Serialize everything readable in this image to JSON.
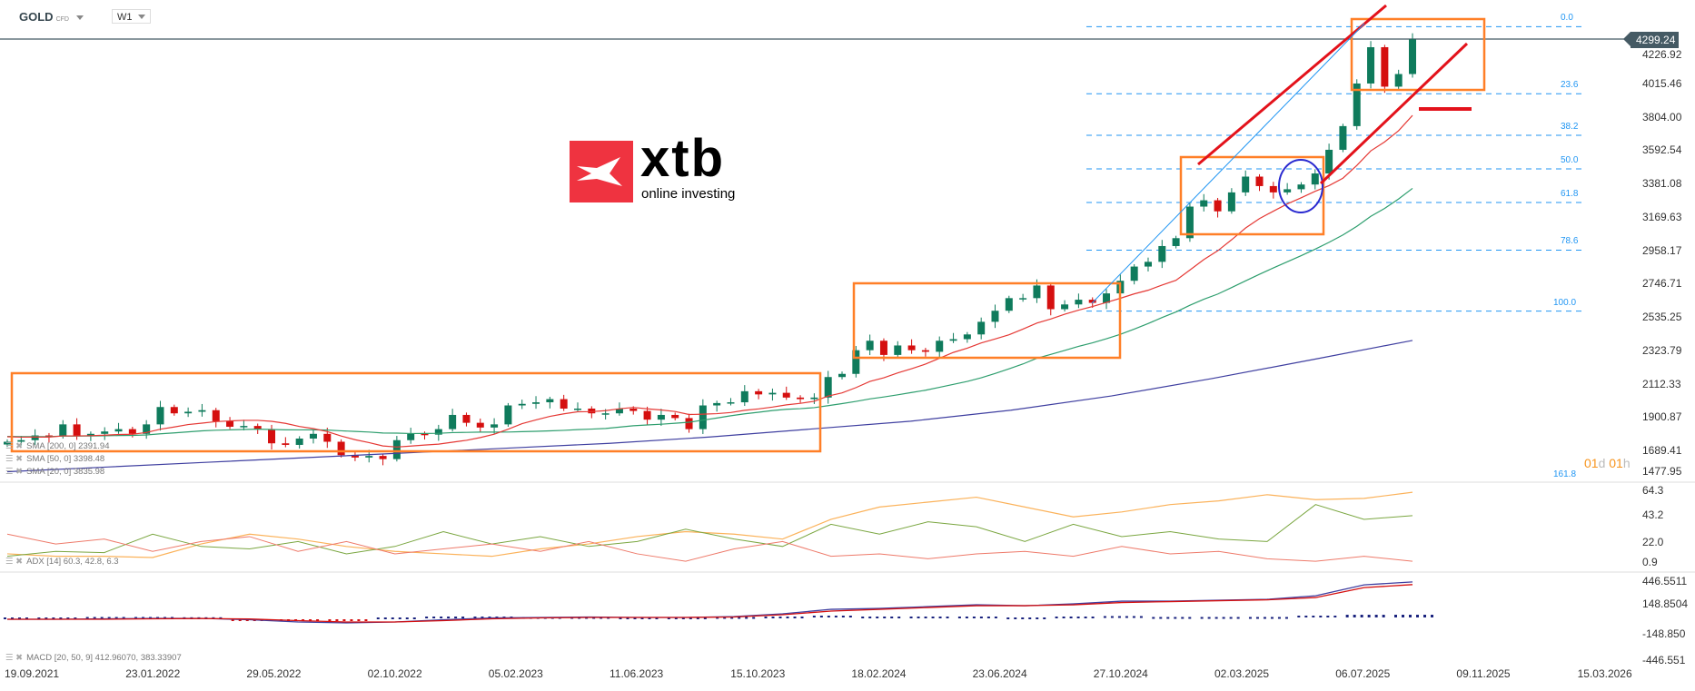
{
  "header": {
    "symbol": "GOLD",
    "instrument_type": "CFD",
    "timeframe": "W1"
  },
  "logo": {
    "brand": "xtb",
    "tagline": "online investing",
    "color": "#ef3340"
  },
  "current_price": "4299.24",
  "price_axis": [
    "4226.92",
    "4015.46",
    "3804.00",
    "3592.54",
    "3381.08",
    "3169.63",
    "2958.17",
    "2746.71",
    "2535.25",
    "2323.79",
    "2112.33",
    "1900.87",
    "1689.41",
    "1477.95"
  ],
  "adx_axis": [
    "64.3",
    "43.2",
    "22.0",
    "0.9"
  ],
  "macd_axis": [
    "446.5511",
    "148.8504",
    "-148.850",
    "-446.551"
  ],
  "dates": [
    "19.09.2021",
    "23.01.2022",
    "29.05.2022",
    "02.10.2022",
    "05.02.2023",
    "11.06.2023",
    "15.10.2023",
    "18.02.2024",
    "23.06.2024",
    "27.10.2024",
    "02.03.2025",
    "06.07.2025",
    "09.11.2025",
    "15.03.2026"
  ],
  "fibonacci": [
    {
      "label": "0.0",
      "price": 4380
    },
    {
      "label": "23.6",
      "price": 3955
    },
    {
      "label": "38.2",
      "price": 3692
    },
    {
      "label": "50.0",
      "price": 3479
    },
    {
      "label": "61.8",
      "price": 3266
    },
    {
      "label": "78.6",
      "price": 2964
    },
    {
      "label": "100.0",
      "price": 2578
    },
    {
      "label": "161.8",
      "price": 1464
    }
  ],
  "indicators": {
    "sma200": "SMA [200, 0] 2391.94",
    "sma50": "SMA [50, 0] 3398.48",
    "sma20": "SMA [20, 0] 3835.98",
    "adx": "ADX [14] 60.3, 42.8, 6.3",
    "macd": "MACD [20, 50, 9] 412.96070, 383.33907"
  },
  "countdown": {
    "days": "01",
    "d": "d",
    "hours": "01",
    "h": "h"
  },
  "colors": {
    "up": "#0f7b5c",
    "down": "#d50f0f",
    "sma200": "#3f3fa0",
    "sma50": "#2e9e6e",
    "sma20": "#e53935",
    "boxes": "#ff7f27",
    "fib": "#2196f3"
  },
  "chart_data": {
    "type": "candlestick",
    "interval": "2 weeks",
    "closes": [
      1750,
      1760,
      1790,
      1785,
      1860,
      1785,
      1800,
      1815,
      1830,
      1800,
      1860,
      1970,
      1930,
      1940,
      1950,
      1880,
      1845,
      1850,
      1830,
      1740,
      1730,
      1770,
      1800,
      1750,
      1665,
      1650,
      1660,
      1640,
      1760,
      1800,
      1795,
      1830,
      1920,
      1870,
      1840,
      1860,
      1980,
      1990,
      2000,
      2020,
      1960,
      1960,
      1930,
      1930,
      1960,
      1945,
      1890,
      1920,
      1900,
      1830,
      1980,
      1995,
      2000,
      2070,
      2050,
      2060,
      2030,
      2020,
      2030,
      2160,
      2180,
      2330,
      2390,
      2300,
      2360,
      2330,
      2320,
      2390,
      2400,
      2430,
      2510,
      2580,
      2660,
      2660,
      2740,
      2590,
      2620,
      2650,
      2630,
      2690,
      2770,
      2860,
      2890,
      2990,
      3040,
      3240,
      3280,
      3210,
      3330,
      3430,
      3370,
      3330,
      3350,
      3380,
      3450,
      3600,
      3750,
      4020,
      4250,
      4000,
      4080,
      4299.24
    ],
    "sma200": [
      1560,
      1590,
      1620,
      1650,
      1680,
      1710,
      1740,
      1780,
      1830,
      1880,
      1950,
      2040,
      2150,
      2270,
      2392
    ],
    "adx": [
      12,
      10,
      10,
      9,
      20,
      28,
      24,
      18,
      14,
      12,
      10,
      16,
      20,
      26,
      30,
      28,
      24,
      40,
      50,
      54,
      58,
      50,
      42,
      46,
      52,
      55,
      60,
      56,
      57,
      62
    ],
    "plus_di": [
      10,
      14,
      13,
      28,
      18,
      16,
      22,
      12,
      18,
      30,
      20,
      26,
      18,
      22,
      32,
      24,
      18,
      36,
      28,
      38,
      34,
      22,
      36,
      26,
      30,
      24,
      22,
      52,
      40,
      43
    ],
    "minus_di": [
      28,
      20,
      24,
      14,
      22,
      26,
      14,
      22,
      12,
      16,
      20,
      14,
      22,
      12,
      6,
      16,
      22,
      10,
      12,
      8,
      12,
      14,
      10,
      18,
      12,
      14,
      8,
      6,
      10,
      6
    ],
    "macd": [
      0,
      0,
      5,
      10,
      10,
      -5,
      -30,
      -40,
      -30,
      -5,
      15,
      20,
      25,
      20,
      20,
      30,
      60,
      110,
      120,
      140,
      160,
      150,
      170,
      200,
      200,
      210,
      220,
      260,
      380,
      413
    ],
    "signal": [
      0,
      0,
      0,
      5,
      8,
      3,
      -15,
      -30,
      -30,
      -15,
      5,
      15,
      20,
      20,
      20,
      25,
      50,
      90,
      110,
      130,
      150,
      150,
      160,
      185,
      195,
      205,
      215,
      240,
      350,
      383
    ]
  }
}
